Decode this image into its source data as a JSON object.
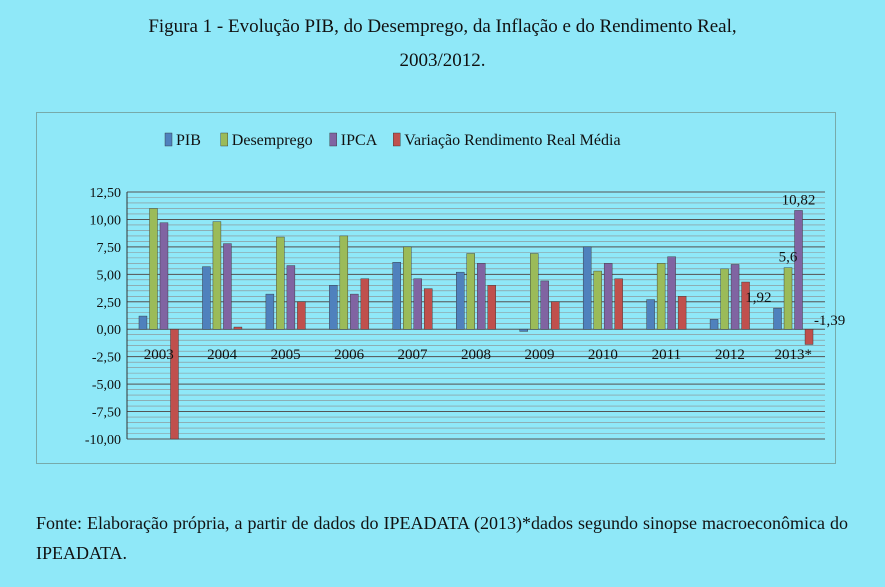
{
  "figure": {
    "title_line1": "Figura 1 - Evolução PIB, do Desemprego, da Inflação e do Rendimento Real,",
    "title_line2": "2003/2012.",
    "source": "Fonte: Elaboração própria, a partir de dados do IPEADATA (2013)*dados segundo sinopse macroeconômica do IPEADATA."
  },
  "chart_data": {
    "type": "bar",
    "title": "",
    "xlabel": "",
    "ylabel": "",
    "ylim": [
      -10,
      12.5
    ],
    "ytick_step": 2.5,
    "ytick_labels": [
      "12,50",
      "10,00",
      "7,50",
      "5,00",
      "2,50",
      "0,00",
      "-2,50",
      "-5,00",
      "-7,50",
      "-10,00"
    ],
    "grid": "horizontal",
    "legend_position": "top",
    "categories": [
      "2003",
      "2004",
      "2005",
      "2006",
      "2007",
      "2008",
      "2009",
      "2010",
      "2011",
      "2012",
      "2013*"
    ],
    "series": [
      {
        "name": "PIB",
        "color": "#4f81bd",
        "values": [
          1.2,
          5.7,
          3.2,
          4.0,
          6.1,
          5.2,
          -0.2,
          7.5,
          2.7,
          0.9,
          1.92
        ]
      },
      {
        "name": "Desemprego",
        "color": "#9bbb59",
        "values": [
          11.0,
          9.8,
          8.4,
          8.5,
          7.5,
          6.9,
          6.9,
          5.3,
          6.0,
          5.5,
          5.6
        ]
      },
      {
        "name": "IPCA",
        "color": "#8064a2",
        "values": [
          9.7,
          7.8,
          5.8,
          3.2,
          4.6,
          6.0,
          4.4,
          6.0,
          6.6,
          5.9,
          10.82
        ]
      },
      {
        "name": "Variação Rendimento Real Média",
        "color": "#c0504d",
        "values": [
          -10.0,
          0.2,
          2.5,
          4.6,
          3.7,
          4.0,
          2.5,
          4.6,
          3.0,
          4.3,
          -1.39
        ]
      }
    ],
    "data_labels": [
      {
        "category": "2013*",
        "series": "PIB",
        "text": "1,92"
      },
      {
        "category": "2013*",
        "series": "Desemprego",
        "text": "5,6"
      },
      {
        "category": "2013*",
        "series": "IPCA",
        "text": "10,82"
      },
      {
        "category": "2013*",
        "series": "Variação Rendimento Real Média",
        "text": "-1,39"
      }
    ]
  }
}
